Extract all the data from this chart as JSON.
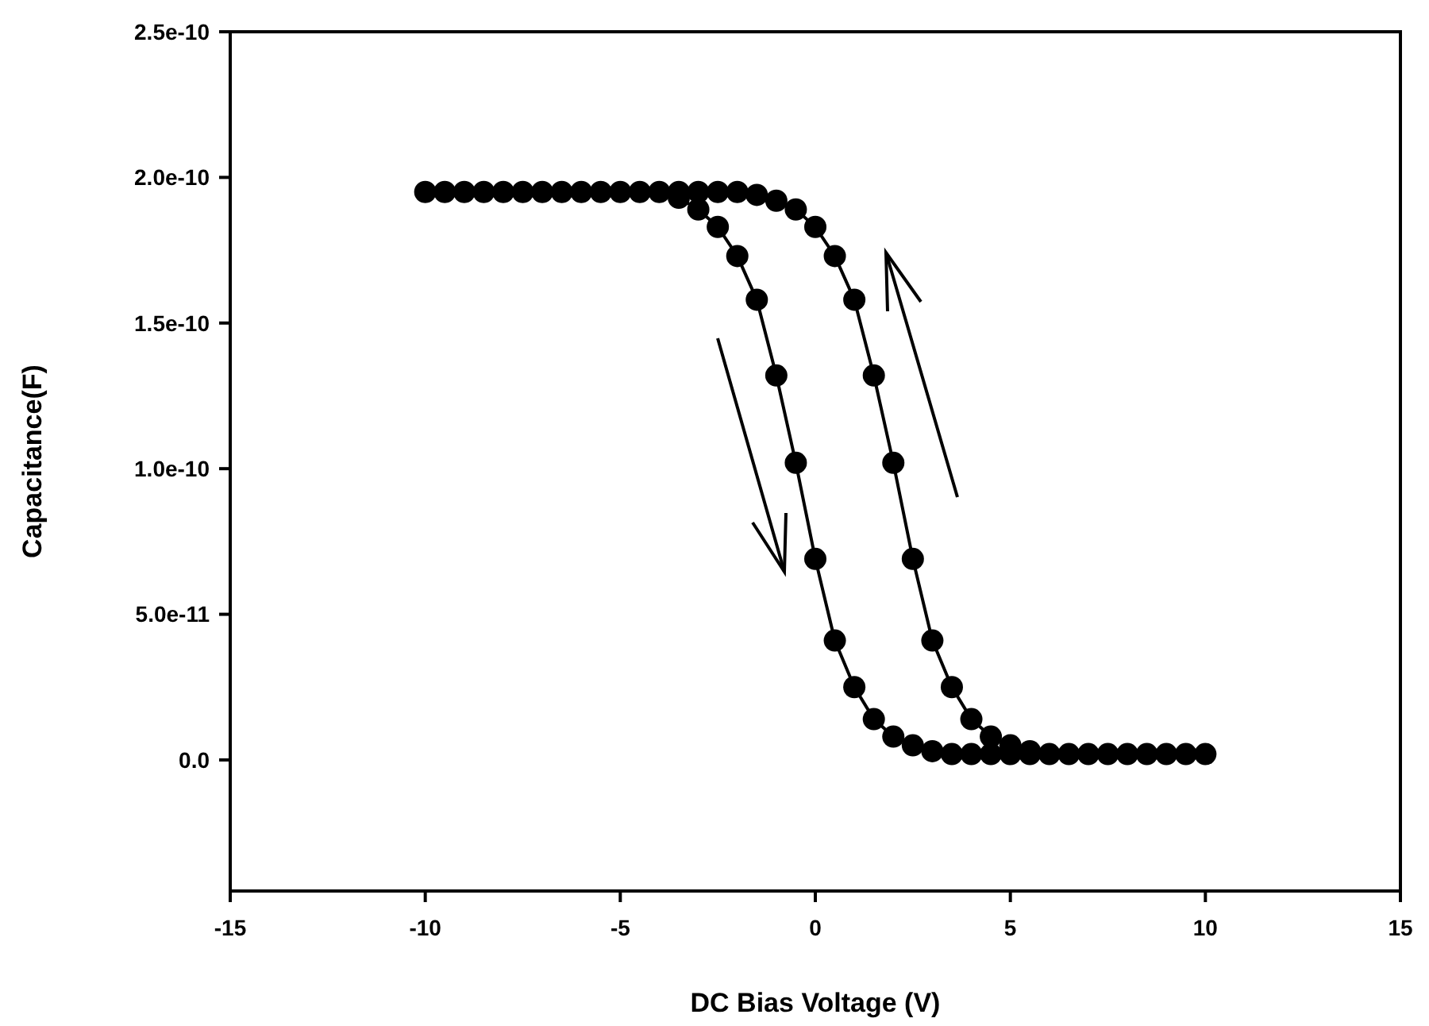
{
  "chart_data": {
    "type": "line",
    "xlabel": "DC Bias Voltage (V)",
    "ylabel": "Capacitance(F)",
    "x": [
      -10,
      -9.5,
      -9,
      -8.5,
      -8,
      -7.5,
      -7,
      -6.5,
      -6,
      -5.5,
      -5,
      -4.5,
      -4,
      -3.5,
      -3,
      -2.5,
      -2,
      -1.5,
      -1,
      -0.5,
      0,
      0.5,
      1,
      1.5,
      2,
      2.5,
      3,
      3.5,
      4,
      4.5,
      5,
      5.5,
      6,
      6.5,
      7,
      7.5,
      8,
      8.5,
      9,
      9.5,
      10
    ],
    "series": [
      {
        "color": "#000000",
        "values": [
          1.95e-10,
          1.95e-10,
          1.95e-10,
          1.95e-10,
          1.95e-10,
          1.95e-10,
          1.95e-10,
          1.95e-10,
          1.95e-10,
          1.95e-10,
          1.95e-10,
          1.95e-10,
          1.95e-10,
          1.93e-10,
          1.89e-10,
          1.83e-10,
          1.73e-10,
          1.58e-10,
          1.32e-10,
          1.02e-10,
          6.9e-11,
          4.1e-11,
          2.5e-11,
          1.4e-11,
          8e-12,
          5e-12,
          3e-12,
          2e-12,
          2e-12,
          2e-12,
          2e-12,
          2e-12,
          2e-12,
          2e-12,
          2e-12,
          2e-12,
          2e-12,
          2e-12,
          2e-12,
          2e-12,
          2e-12
        ]
      },
      {
        "color": "#000000",
        "values": [
          null,
          null,
          null,
          null,
          null,
          null,
          null,
          null,
          null,
          null,
          null,
          null,
          null,
          1.95e-10,
          1.95e-10,
          1.95e-10,
          1.95e-10,
          1.94e-10,
          1.92e-10,
          1.89e-10,
          1.83e-10,
          1.73e-10,
          1.58e-10,
          1.32e-10,
          1.02e-10,
          6.9e-11,
          4.1e-11,
          2.5e-11,
          1.4e-11,
          8e-12,
          5e-12,
          3e-12,
          null,
          null,
          null,
          null,
          null,
          null,
          null,
          null,
          null
        ]
      }
    ],
    "xlim": [
      -15,
      15
    ],
    "xticks": [
      -15,
      -10,
      -5,
      0,
      5,
      10,
      15
    ],
    "ylim": [
      -4.5e-11,
      2.5e-10
    ],
    "yticks": [
      {
        "value": 0,
        "label": "0.0"
      },
      {
        "value": 5e-11,
        "label": "5.0e-11"
      },
      {
        "value": 1e-10,
        "label": "1.0e-10"
      },
      {
        "value": 1.5e-10,
        "label": "1.5e-10"
      },
      {
        "value": 2e-10,
        "label": "2.0e-10"
      },
      {
        "value": 2.5e-10,
        "label": "2.5e-10"
      }
    ],
    "marker": "circle",
    "line_style": "solid"
  }
}
